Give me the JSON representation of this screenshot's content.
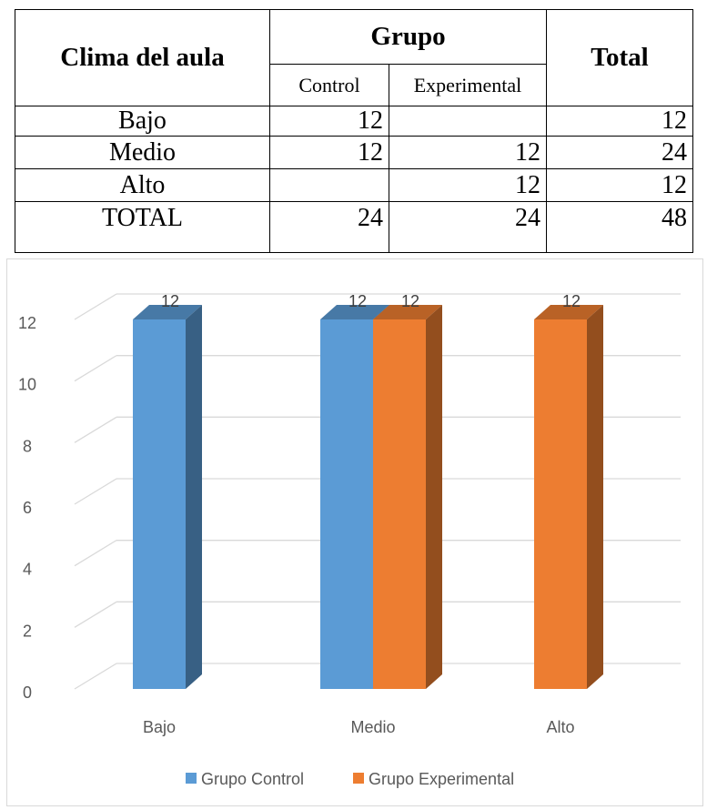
{
  "table": {
    "row_header": "Clima del aula",
    "group_header": "Grupo",
    "total_header": "Total",
    "subheaders": [
      "Control",
      "Experimental"
    ],
    "rows": [
      {
        "label": "Bajo",
        "control": "12",
        "experimental": "",
        "total": "12"
      },
      {
        "label": "Medio",
        "control": "12",
        "experimental": "12",
        "total": "24"
      },
      {
        "label": "Alto",
        "control": "",
        "experimental": "12",
        "total": "12"
      },
      {
        "label": "TOTAL",
        "control": "24",
        "experimental": "24",
        "total": "48"
      }
    ]
  },
  "chart_data": {
    "type": "bar",
    "categories": [
      "Bajo",
      "Medio",
      "Alto"
    ],
    "series": [
      {
        "name": "Grupo Control",
        "values": [
          12,
          12,
          0
        ],
        "color": "#5b9bd5"
      },
      {
        "name": "Grupo Experimental",
        "values": [
          0,
          12,
          12
        ],
        "color": "#ed7d31"
      }
    ],
    "data_labels": [
      [
        "12",
        "12",
        ""
      ],
      [
        "",
        "12",
        "12"
      ]
    ],
    "ylim": [
      0,
      12
    ],
    "yticks": [
      "0",
      "2",
      "4",
      "6",
      "8",
      "10",
      "12"
    ],
    "grid": true,
    "legend_position": "bottom",
    "style": "3d-column"
  }
}
